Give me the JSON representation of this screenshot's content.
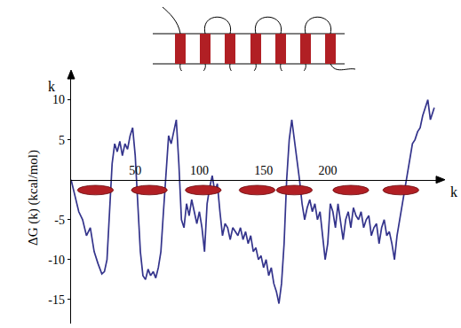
{
  "chart_data": {
    "type": "line",
    "y_label": "ΔG (k) (kcal/mol)",
    "x_label": "k",
    "annotations": [
      "k"
    ],
    "color": "#34348c",
    "grid": false,
    "xlim": [
      0,
      290
    ],
    "ylim": [
      -18,
      13.5
    ],
    "xticks": [
      50,
      100,
      150,
      200
    ],
    "yticks": [
      -15,
      -10,
      -5,
      5,
      10
    ],
    "segments": [
      [
        5,
        33
      ],
      [
        47,
        75
      ],
      [
        89,
        117
      ],
      [
        131,
        159
      ],
      [
        160,
        188
      ],
      [
        204,
        232
      ],
      [
        243,
        271
      ]
    ],
    "segment_level": -1.3,
    "x": [
      0,
      3,
      6,
      9,
      12,
      15,
      18,
      21,
      24,
      26,
      28,
      30,
      32,
      34,
      36,
      38,
      40,
      42,
      44,
      46,
      48,
      50,
      52,
      54,
      56,
      58,
      60,
      62,
      64,
      66,
      68,
      70,
      72,
      74,
      76,
      78,
      80,
      82,
      84,
      86,
      88,
      90,
      92,
      94,
      96,
      98,
      100,
      102,
      104,
      106,
      108,
      110,
      112,
      114,
      116,
      118,
      120,
      122,
      124,
      126,
      128,
      130,
      132,
      134,
      136,
      138,
      140,
      142,
      144,
      146,
      148,
      150,
      152,
      154,
      156,
      158,
      160,
      162,
      164,
      166,
      168,
      170,
      172,
      174,
      176,
      178,
      180,
      182,
      184,
      186,
      188,
      190,
      192,
      194,
      196,
      198,
      200,
      202,
      204,
      206,
      208,
      210,
      212,
      214,
      216,
      218,
      220,
      222,
      224,
      226,
      228,
      230,
      232,
      234,
      236,
      238,
      240,
      242,
      244,
      246,
      248,
      250,
      252,
      254,
      256,
      258,
      260,
      262,
      264,
      266,
      268,
      270,
      272,
      274,
      276,
      278,
      280,
      282,
      283
    ],
    "values": [
      0,
      -2,
      -4,
      -5,
      -7,
      -6,
      -9,
      -10.5,
      -11.8,
      -11.5,
      -10,
      -4,
      2,
      4.5,
      3.5,
      4.8,
      3,
      4.5,
      3.8,
      5.5,
      6.5,
      3,
      -3,
      -9,
      -12,
      -12.5,
      -11.2,
      -12,
      -11.5,
      -12.3,
      -11,
      -9,
      -4,
      1,
      5.5,
      4.5,
      6,
      7.5,
      2,
      -5,
      -6,
      -3,
      -4.5,
      -2.5,
      -4,
      -5.5,
      -4,
      -6,
      -9,
      -3,
      -1,
      0.5,
      -1.5,
      -0.5,
      -4,
      -7,
      -5.5,
      -6,
      -7.5,
      -6,
      -6.5,
      -7,
      -6,
      -7.5,
      -6.5,
      -8,
      -7,
      -9,
      -8.5,
      -10,
      -9.5,
      -11,
      -10,
      -12,
      -11,
      -13,
      -14,
      -15.5,
      -13,
      -8,
      0,
      5,
      7.5,
      5,
      3,
      0,
      -3,
      -5,
      -3.5,
      -2.5,
      -4,
      -3,
      -5,
      -4,
      -7,
      -10,
      -8,
      -3,
      -4,
      -6,
      -3,
      -5,
      -7.5,
      -5,
      -4,
      -6,
      -3.5,
      -4.5,
      -5,
      -4,
      -6,
      -5,
      -4.5,
      -7,
      -6,
      -5.5,
      -8,
      -6,
      -5,
      -7,
      -6.5,
      -8,
      -10,
      -7,
      -5,
      -3,
      -1,
      1,
      3,
      4.5,
      5,
      6,
      6.5,
      8,
      9,
      10,
      7.5,
      8.5,
      9
    ]
  }
}
